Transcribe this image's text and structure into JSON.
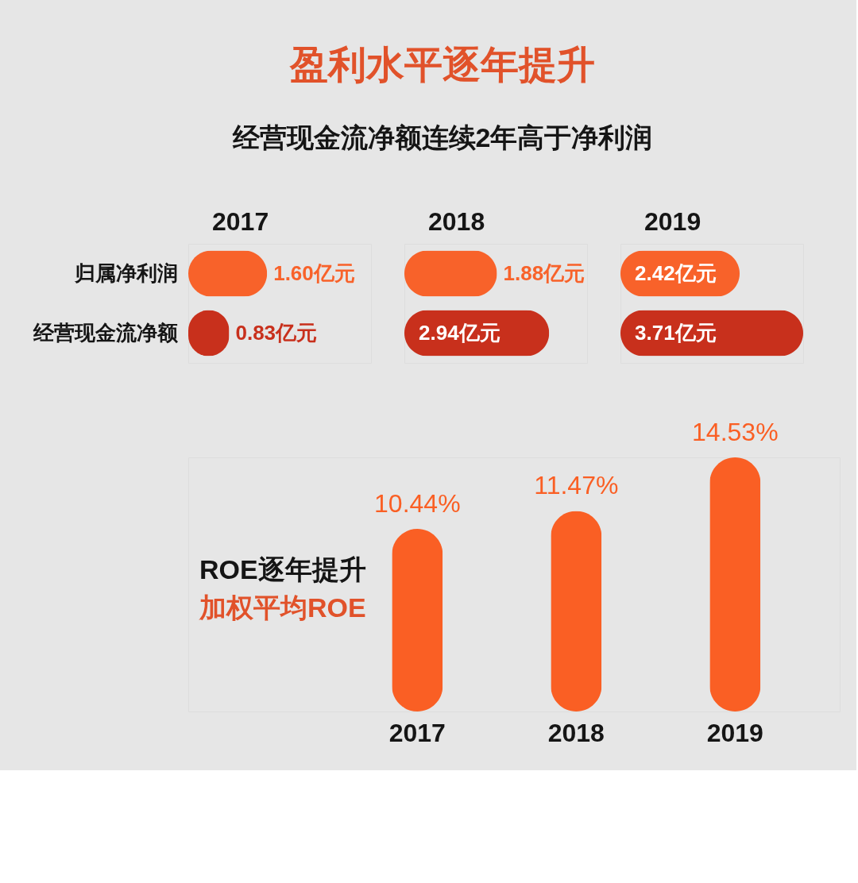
{
  "chart_data": [
    {
      "type": "other",
      "title": "盈利水平逐年提升",
      "subtitle": "经营现金流净额连续2年高于净利润"
    },
    {
      "type": "bar",
      "orientation": "horizontal",
      "title": "2017",
      "categories": [
        "归属净利润",
        "经营现金流净额"
      ],
      "values": [
        1.6,
        0.83
      ],
      "colors": [
        "#f8622a",
        "#c8301c"
      ],
      "value_labels": [
        "1.60亿元",
        "0.83亿元"
      ],
      "tick_labels": "y"
    },
    {
      "type": "bar",
      "orientation": "horizontal",
      "title": "2018",
      "categories": [
        null,
        null
      ],
      "values": [
        1.88,
        2.94
      ],
      "colors": [
        "#f8622a",
        "#c8301c"
      ],
      "value_labels": [
        "1.88亿元",
        "2.94亿元"
      ]
    },
    {
      "type": "bar",
      "orientation": "horizontal",
      "title": "2019",
      "categories": [
        null,
        null
      ],
      "values": [
        2.42,
        3.71
      ],
      "colors": [
        "#f8622a",
        "#c8301c"
      ],
      "value_labels": [
        "2.42亿元",
        "3.71亿元"
      ]
    },
    {
      "type": "bar",
      "title": "ROE逐年提升",
      "subtitle": "加权平均ROE",
      "categories": [
        "2017",
        "2018",
        "2019"
      ],
      "values": [
        10.44,
        11.47,
        14.53
      ],
      "color": "#fa5f24",
      "value_labels": [
        "10.44%",
        "11.47%",
        "14.53%"
      ],
      "tick_labels": "x"
    }
  ]
}
